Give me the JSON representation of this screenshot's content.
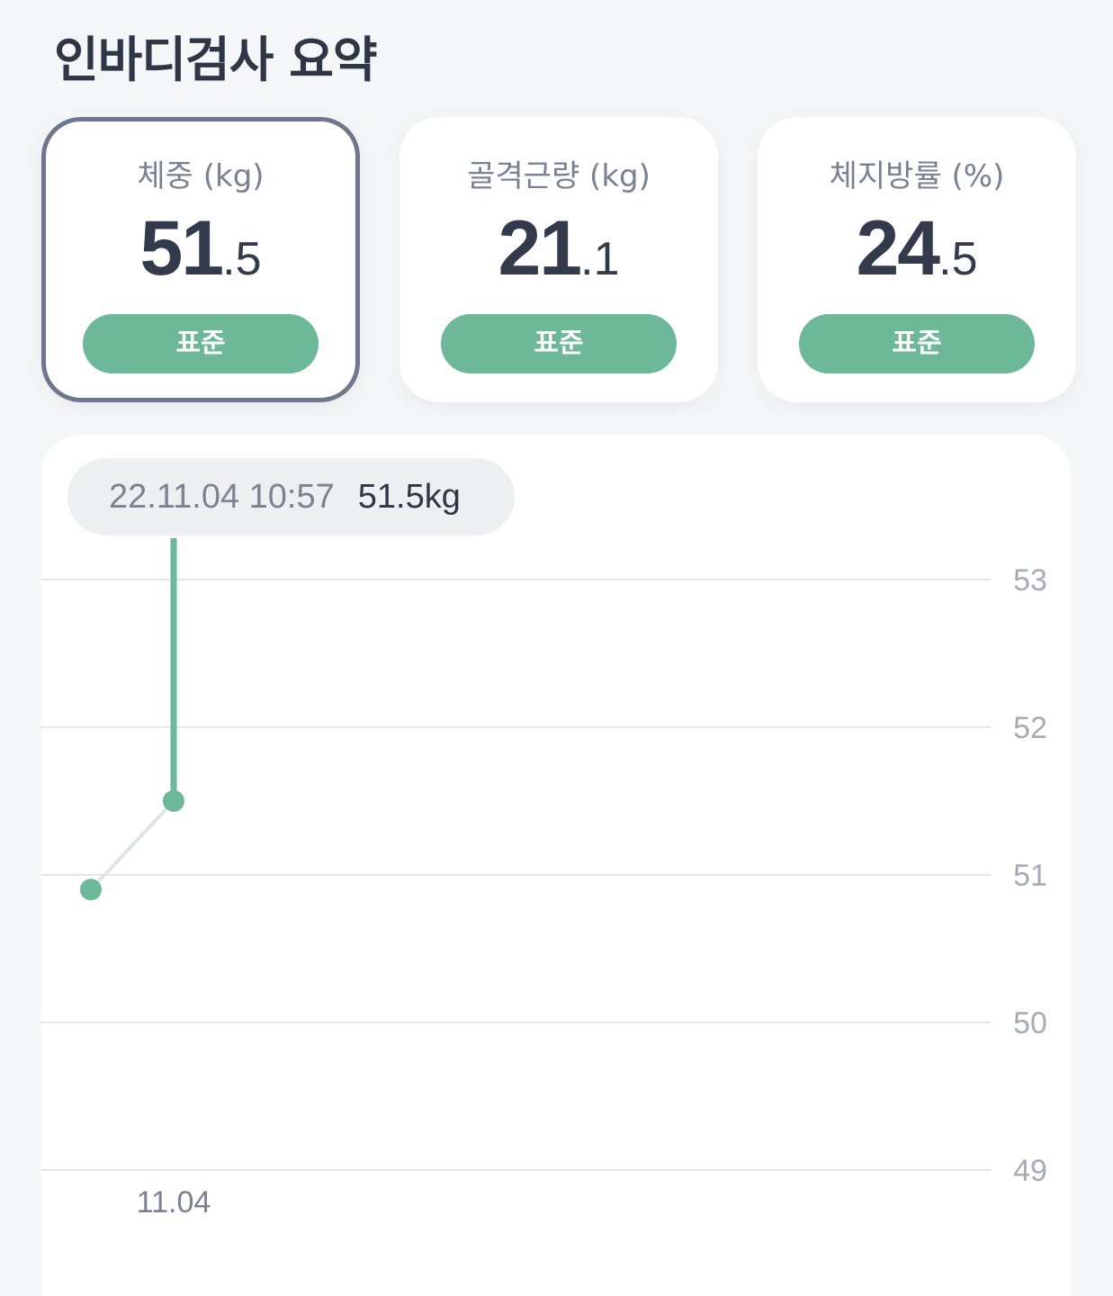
{
  "page_title": "인바디검사 요약",
  "cards": [
    {
      "label": "체중 (kg)",
      "int": "51",
      "dec": ".5",
      "status": "표준",
      "selected": true
    },
    {
      "label": "골격근량 (kg)",
      "int": "21",
      "dec": ".1",
      "status": "표준",
      "selected": false
    },
    {
      "label": "체지방률 (%)",
      "int": "24",
      "dec": ".5",
      "status": "표준",
      "selected": false
    }
  ],
  "tooltip": {
    "datetime": "22.11.04 10:57",
    "value": "51.5kg"
  },
  "colors": {
    "accent": "#6cb899",
    "selected_border": "#6d788f",
    "grid": "#e4e6ea",
    "axis_text": "#a6abb6"
  },
  "chart_data": {
    "type": "line",
    "y_ticks": [
      "53",
      "52",
      "51",
      "50",
      "49"
    ],
    "ylim": [
      49,
      53
    ],
    "x_tick_labels": [
      "11.04"
    ],
    "points": [
      {
        "x": "prev",
        "y": 50.9
      },
      {
        "x": "11.04",
        "y": 51.5,
        "selected": true
      }
    ],
    "selected_index": 1
  }
}
